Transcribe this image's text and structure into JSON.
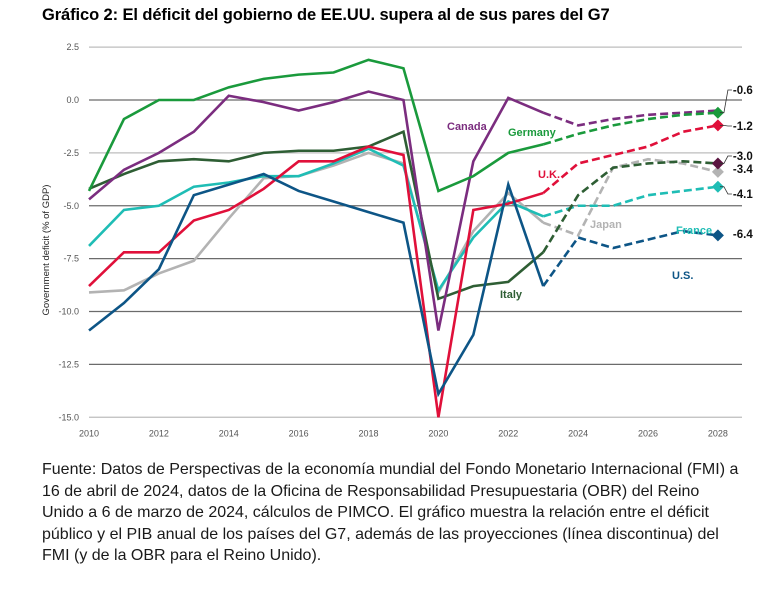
{
  "title": "Gráfico 2: El déficit del gobierno de EE.UU. supera al de sus pares del G7",
  "source": "Fuente: Datos de Perspectivas de la economía mundial del Fondo Monetario Internacional (FMI) a 16 de abril de 2024, datos de la Oficina de Responsabilidad Presupuestaria (OBR) del Reino Unido a 6 de marzo de 2024, cálculos de PIMCO. El gráfico muestra la relación entre el déficit público y el PIB anual de los países del G7, además de las proyecciones (línea discontinua) del FMI (y de la OBR para el Reino Unido).",
  "chart_data": {
    "type": "line",
    "title": "Gráfico 2: El déficit del gobierno de EE.UU. supera al de sus pares del G7",
    "xlabel": "",
    "ylabel": "Government deficit (% of GDP)",
    "xlim": [
      2010,
      2029
    ],
    "ylim": [
      -15.0,
      2.5
    ],
    "grid": true,
    "x_ticks": [
      2010,
      2012,
      2014,
      2016,
      2018,
      2020,
      2022,
      2024,
      2026,
      2028
    ],
    "x_tick_labels": [
      "2010",
      "2012",
      "2014",
      "2016",
      "2018",
      "2020",
      "2022",
      "2024",
      "2026",
      "2028"
    ],
    "y_ticks": [
      2.5,
      0.0,
      -2.5,
      -5.0,
      -7.5,
      -10.0,
      -12.5,
      -15.0
    ],
    "y_tick_labels": [
      "2.5",
      "0.0",
      "-2.5",
      "-5.0",
      "-7.5",
      "-10.0",
      "-12.5",
      "-15.0"
    ],
    "projection_start": 2023,
    "x": [
      2010,
      2011,
      2012,
      2013,
      2014,
      2015,
      2016,
      2017,
      2018,
      2019,
      2020,
      2021,
      2022,
      2023,
      2024,
      2025,
      2026,
      2027,
      2028
    ],
    "series": [
      {
        "name": "Japan",
        "label": "Japan",
        "color": "#b3b3b3",
        "end_label": "-3.4",
        "marker_color": "#b3b3b3",
        "values": [
          -9.1,
          -9.0,
          -8.2,
          -7.6,
          -5.6,
          -3.7,
          -3.6,
          -3.1,
          -2.5,
          -3.0,
          -9.1,
          -6.2,
          -4.4,
          -5.8,
          -6.4,
          -3.2,
          -2.8,
          -3.0,
          -3.4
        ]
      },
      {
        "name": "France",
        "label": "France",
        "color": "#1fbdb5",
        "end_label": "-4.1",
        "marker_color": "#1fbdb5",
        "values": [
          -6.9,
          -5.2,
          -5.0,
          -4.1,
          -3.9,
          -3.6,
          -3.6,
          -3.0,
          -2.3,
          -3.1,
          -9.0,
          -6.5,
          -4.8,
          -5.5,
          -5.0,
          -5.0,
          -4.5,
          -4.3,
          -4.1
        ]
      },
      {
        "name": "Italy",
        "label": "Italy",
        "color": "#2e5e34",
        "end_label": "-3.0",
        "marker_color": "#5a1540",
        "values": [
          -4.2,
          -3.5,
          -2.9,
          -2.8,
          -2.9,
          -2.5,
          -2.4,
          -2.4,
          -2.2,
          -1.5,
          -9.4,
          -8.8,
          -8.6,
          -7.2,
          -4.5,
          -3.2,
          -3.0,
          -2.9,
          -3.0
        ]
      },
      {
        "name": "U.K.",
        "label": "U.K.",
        "color": "#e0103a",
        "end_label": "-1.2",
        "marker_color": "#e0103a",
        "values": [
          -8.8,
          -7.2,
          -7.2,
          -5.7,
          -5.2,
          -4.2,
          -2.9,
          -2.9,
          -2.2,
          -2.6,
          -15.0,
          -5.2,
          -4.9,
          -4.4,
          -3.0,
          -2.6,
          -2.2,
          -1.5,
          -1.2
        ]
      },
      {
        "name": "U.S.",
        "label": "U.S.",
        "color": "#0d5586",
        "end_label": "-6.4",
        "marker_color": "#0d5586",
        "values": [
          -10.9,
          -9.6,
          -8.0,
          -4.5,
          -4.0,
          -3.5,
          -4.3,
          -4.8,
          -5.3,
          -5.8,
          -13.9,
          -11.1,
          -4.0,
          -8.8,
          -6.5,
          -7.0,
          -6.6,
          -6.2,
          -6.4
        ]
      },
      {
        "name": "Canada",
        "label": "Canada",
        "color": "#7b2d7f",
        "end_label": "",
        "marker_color": "",
        "values": [
          -4.7,
          -3.3,
          -2.5,
          -1.5,
          0.2,
          -0.1,
          -0.5,
          -0.1,
          0.4,
          0.0,
          -10.9,
          -2.9,
          0.1,
          -0.6,
          -1.2,
          -0.9,
          -0.7,
          -0.6,
          -0.5
        ]
      },
      {
        "name": "Germany",
        "label": "Germany",
        "color": "#1a9a3c",
        "end_label": "-0.6",
        "marker_color": "#1a9a3c",
        "values": [
          -4.3,
          -0.9,
          0.0,
          0.0,
          0.6,
          1.0,
          1.2,
          1.3,
          1.9,
          1.5,
          -4.3,
          -3.6,
          -2.5,
          -2.1,
          -1.6,
          -1.2,
          -0.9,
          -0.7,
          -0.6
        ]
      }
    ]
  }
}
